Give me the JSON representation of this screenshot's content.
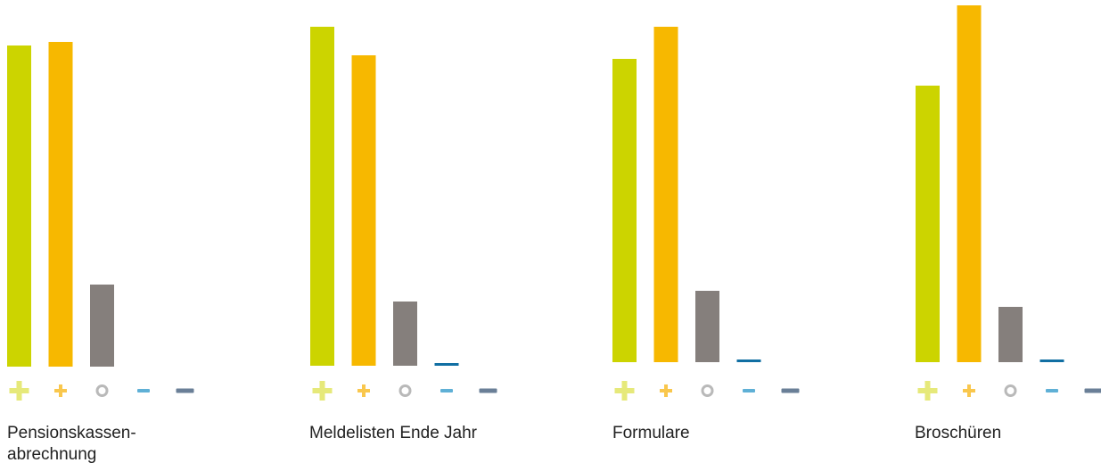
{
  "chart_data": {
    "type": "bar",
    "categories": [
      "Pensionskassen-\nabrechnung",
      "Meldelisten Ende Jahr",
      "Formulare",
      "Broschüren"
    ],
    "series": [
      {
        "icon": "big-plus-icon",
        "color": "#ccd400",
        "values": [
          36,
          38,
          34,
          31
        ]
      },
      {
        "icon": "small-plus-icon",
        "color": "#f7b800",
        "values": [
          36.4,
          34.8,
          37.6,
          40
        ]
      },
      {
        "icon": "circle-icon",
        "color": "#857f7c",
        "values": [
          9.2,
          7.2,
          8.0,
          6.2
        ]
      },
      {
        "icon": "small-minus-icon",
        "color": "#116fa3",
        "values": [
          0,
          0.3,
          0.3,
          0.3
        ]
      },
      {
        "icon": "big-minus-icon",
        "color": "#5a6f86",
        "values": [
          0,
          0,
          0,
          0
        ]
      }
    ],
    "legend_colors": {
      "big-plus-icon": "#e6e97a",
      "small-plus-icon": "#f9c74d",
      "circle-icon": "#b9b9b9",
      "small-minus-icon": "#5fb0d6",
      "big-minus-icon": "#6a7f97"
    },
    "grid": false,
    "axes_visible": false
  }
}
